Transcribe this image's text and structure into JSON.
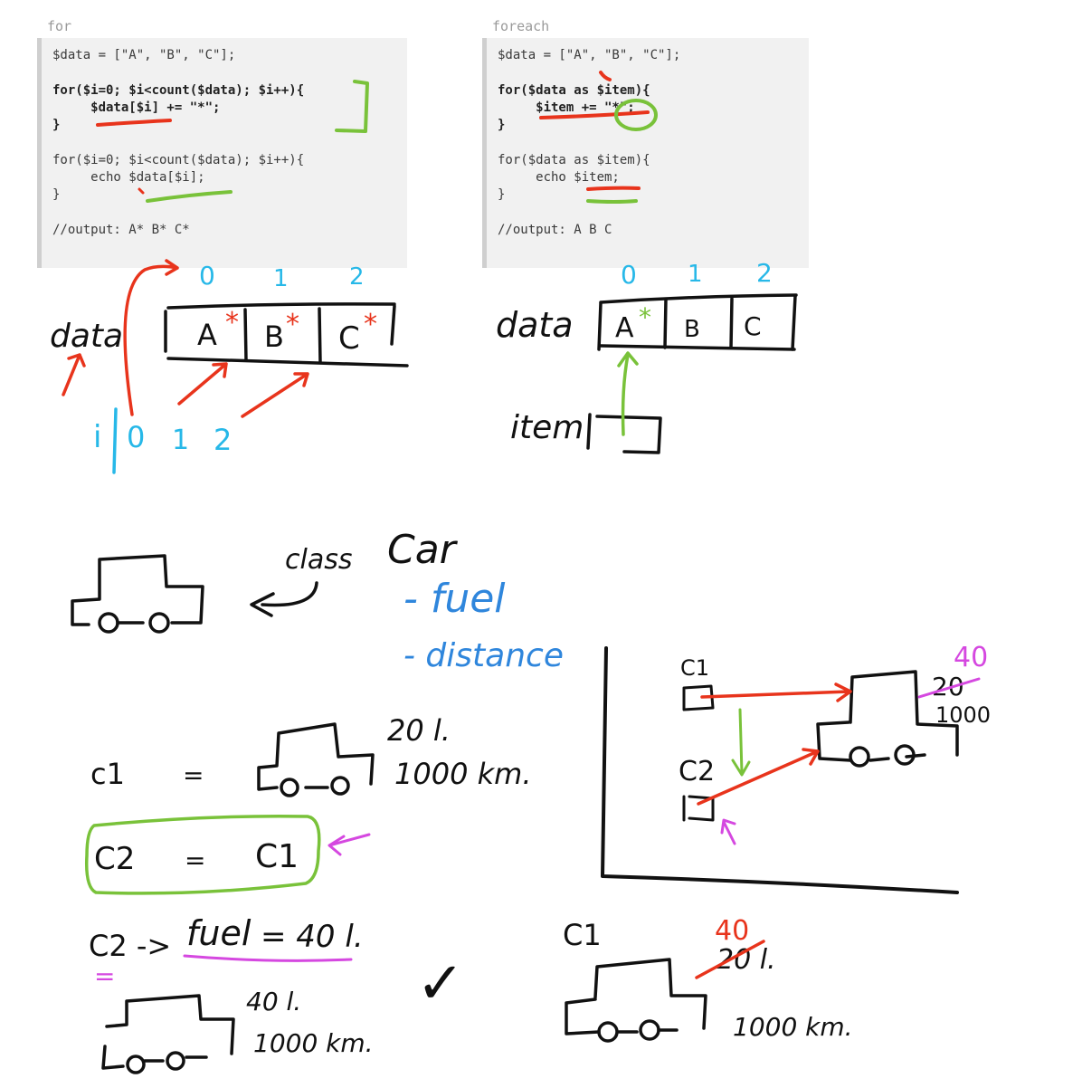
{
  "for_block": {
    "title": "for",
    "lines": [
      "$data = [\"A\", \"B\", \"C\"];",
      "",
      "for($i=0; $i<count($data); $i++){",
      "     $data[$i] += \"*\";",
      "}",
      "",
      "for($i=0; $i<count($data); $i++){",
      "     echo $data[$i];",
      "}",
      "",
      "//output: A* B* C*"
    ]
  },
  "foreach_block": {
    "title": "foreach",
    "lines": [
      "$data = [\"A\", \"B\", \"C\"];",
      "",
      "for($data as $item){",
      "     $item += \"*\";",
      "}",
      "",
      "for($data as $item){",
      "     echo $item;",
      "}",
      "",
      "//output: A B C"
    ]
  },
  "left_array": {
    "name": "data",
    "indices": [
      "0",
      "1",
      "2"
    ],
    "cells": [
      "A",
      "B",
      "C"
    ],
    "star": "*",
    "loop_var": "i",
    "loop_values": [
      "0",
      "1",
      "2"
    ]
  },
  "right_array": {
    "name": "data",
    "indices": [
      "0",
      "1",
      "2"
    ],
    "cells": [
      "A",
      "B",
      "C"
    ],
    "star": "*",
    "item_label": "item"
  },
  "class_def": {
    "keyword": "class",
    "name": "Car",
    "props": [
      "- fuel",
      "- distance"
    ]
  },
  "assignments": {
    "c1_name": "c1",
    "eq": "=",
    "c1_fuel": "20 l.",
    "c1_distance": "1000 km.",
    "c2_line": [
      "C2",
      "=",
      "C1"
    ],
    "c2_fuel_line": [
      "C2 ->",
      "fuel",
      "= 40 l."
    ],
    "c2_underline": "=",
    "result_fuel": "40 l.",
    "result_distance": "1000 km.",
    "check": "✓"
  },
  "memory_diagram": {
    "c1": "C1",
    "c2": "C2",
    "new_fuel": "40",
    "old_fuel": "20",
    "distance": "1000"
  },
  "bottom_right": {
    "label": "C1",
    "new_fuel": "40",
    "old_fuel": "20 l.",
    "distance": "1000 km."
  },
  "colors": {
    "ink": "#111111",
    "red": "#e8341c",
    "green": "#79c23a",
    "cyan": "#27b8e8",
    "blue": "#2f86dc",
    "magenta": "#d548e0"
  }
}
